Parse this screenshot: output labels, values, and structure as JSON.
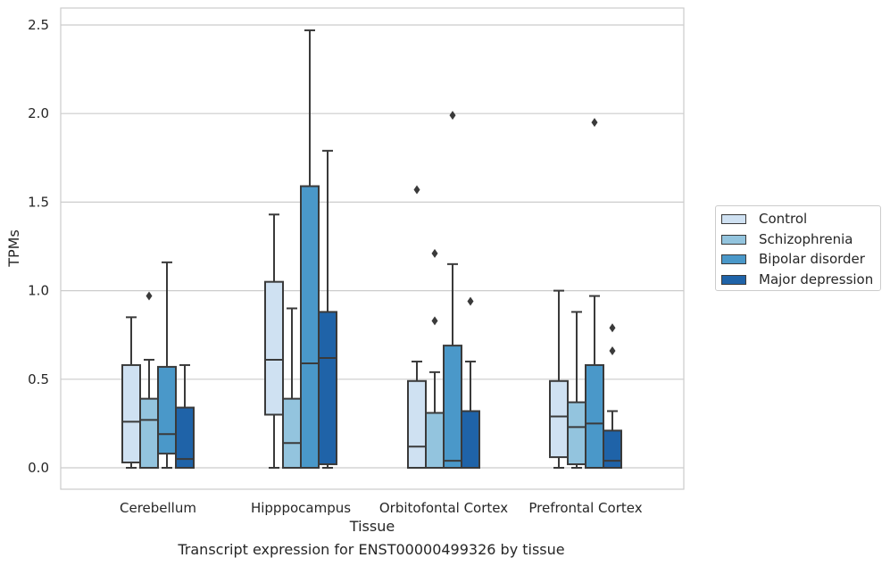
{
  "chart_data": {
    "type": "box",
    "xlabel": "Tissue",
    "ylabel": "TPMs",
    "ylim": [
      -0.12,
      2.6
    ],
    "yticks": [
      0.0,
      0.5,
      1.0,
      1.5,
      2.0,
      2.5
    ],
    "ytick_labels": [
      "0.0",
      "0.5",
      "1.0",
      "1.5",
      "2.0",
      "2.5"
    ],
    "grid": "horizontal",
    "legend_position": "right",
    "categories": [
      "Cerebellum",
      "Hipppocampus",
      "Orbitofontal Cortex",
      "Prefrontal Cortex"
    ],
    "series": [
      {
        "name": "Control",
        "color": "#cfe1f2",
        "boxes": [
          {
            "whislo": 0.0,
            "q1": 0.03,
            "med": 0.26,
            "q3": 0.58,
            "whishi": 0.85,
            "fliers": []
          },
          {
            "whislo": 0.0,
            "q1": 0.3,
            "med": 0.61,
            "q3": 1.05,
            "whishi": 1.43,
            "fliers": []
          },
          {
            "whislo": 0.0,
            "q1": 0.0,
            "med": 0.12,
            "q3": 0.49,
            "whishi": 0.6,
            "fliers": [
              1.57
            ]
          },
          {
            "whislo": 0.0,
            "q1": 0.06,
            "med": 0.29,
            "q3": 0.49,
            "whishi": 1.0,
            "fliers": []
          }
        ]
      },
      {
        "name": "Schizophrenia",
        "color": "#93c4de",
        "boxes": [
          {
            "whislo": 0.0,
            "q1": 0.0,
            "med": 0.27,
            "q3": 0.39,
            "whishi": 0.61,
            "fliers": [
              0.97
            ]
          },
          {
            "whislo": 0.0,
            "q1": 0.0,
            "med": 0.14,
            "q3": 0.39,
            "whishi": 0.9,
            "fliers": []
          },
          {
            "whislo": 0.0,
            "q1": 0.0,
            "med": 0.0,
            "q3": 0.31,
            "whishi": 0.54,
            "fliers": [
              0.83,
              1.21
            ]
          },
          {
            "whislo": 0.0,
            "q1": 0.02,
            "med": 0.23,
            "q3": 0.37,
            "whishi": 0.88,
            "fliers": []
          }
        ]
      },
      {
        "name": "Bipolar disorder",
        "color": "#4a98c9",
        "boxes": [
          {
            "whislo": 0.0,
            "q1": 0.08,
            "med": 0.19,
            "q3": 0.57,
            "whishi": 1.16,
            "fliers": []
          },
          {
            "whislo": 0.0,
            "q1": 0.0,
            "med": 0.59,
            "q3": 1.59,
            "whishi": 2.47,
            "fliers": []
          },
          {
            "whislo": 0.0,
            "q1": 0.0,
            "med": 0.04,
            "q3": 0.69,
            "whishi": 1.15,
            "fliers": [
              1.99
            ]
          },
          {
            "whislo": 0.0,
            "q1": 0.0,
            "med": 0.25,
            "q3": 0.58,
            "whishi": 0.97,
            "fliers": [
              1.95
            ]
          }
        ]
      },
      {
        "name": "Major depression",
        "color": "#1f63a8",
        "boxes": [
          {
            "whislo": 0.0,
            "q1": 0.0,
            "med": 0.05,
            "q3": 0.34,
            "whishi": 0.58,
            "fliers": []
          },
          {
            "whislo": 0.0,
            "q1": 0.02,
            "med": 0.62,
            "q3": 0.88,
            "whishi": 1.79,
            "fliers": []
          },
          {
            "whislo": 0.0,
            "q1": 0.0,
            "med": 0.0,
            "q3": 0.32,
            "whishi": 0.6,
            "fliers": [
              0.94
            ]
          },
          {
            "whislo": 0.0,
            "q1": 0.0,
            "med": 0.04,
            "q3": 0.21,
            "whishi": 0.32,
            "fliers": [
              0.66,
              0.79
            ]
          }
        ]
      }
    ],
    "caption": "Transcript expression for ENST00000499326 by tissue"
  }
}
